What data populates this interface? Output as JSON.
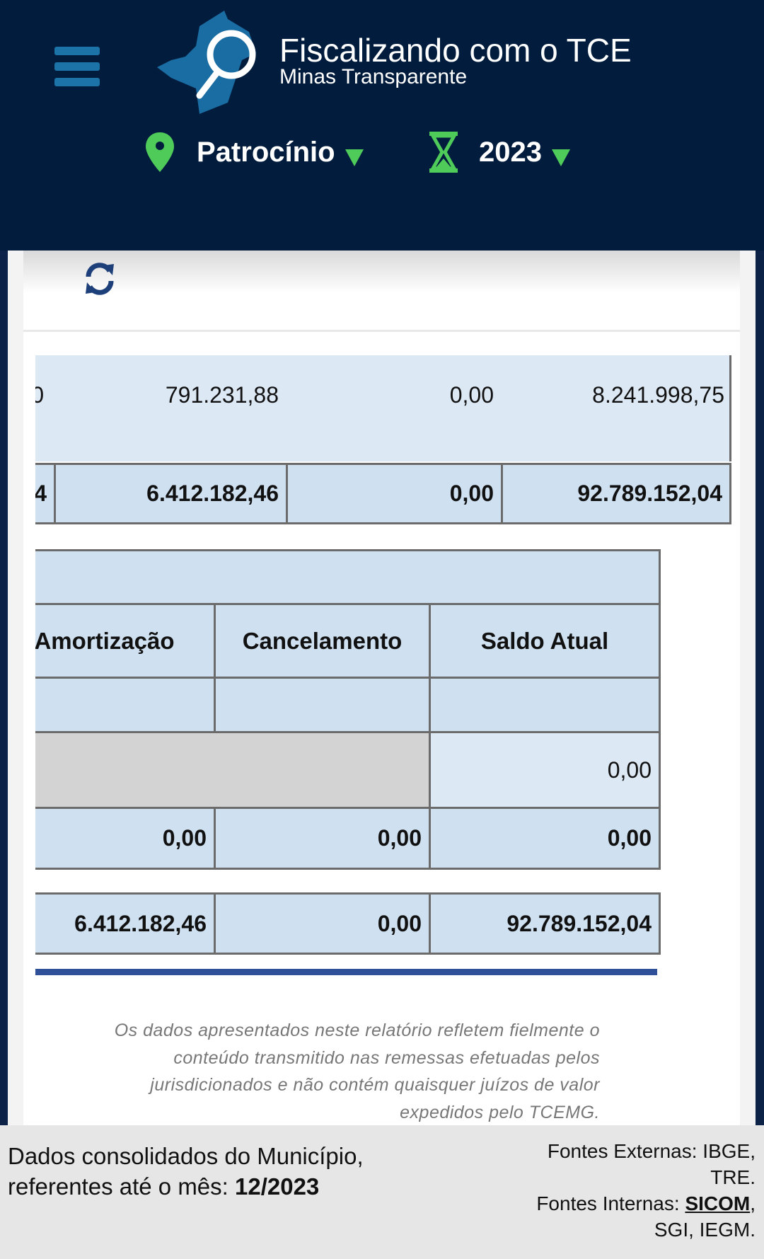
{
  "header": {
    "title": "Fiscalizando com o TCE",
    "subtitle": "Minas Transparente",
    "municipality": "Patrocínio",
    "year": "2023"
  },
  "colors": {
    "header_bg": "#021c3d",
    "accent_green": "#4fcb5a",
    "cell_bg": "#cfe0f1",
    "row_light_bg": "#dde8f5",
    "bar": "#2f4f98"
  },
  "table1": {
    "row1": [
      "0",
      "791.231,88",
      "0,00",
      "8.241.998,75"
    ],
    "total": [
      "4",
      "6.412.182,46",
      "0,00",
      "92.789.152,04"
    ]
  },
  "table2": {
    "headers": [
      "Amortização",
      "Cancelamento",
      "Saldo Atual"
    ],
    "row_saldo": "0,00",
    "subtotal": [
      "0,00",
      "0,00",
      "0,00"
    ],
    "total": [
      "6.412.182,46",
      "0,00",
      "92.789.152,04"
    ]
  },
  "disclaimer": [
    "Os dados apresentados neste relatório refletem fielmente o",
    "conteúdo transmitido nas remessas efetuadas pelos",
    "jurisdicionados e não contém quaisquer juízos de valor",
    "expedidos pelo TCEMG."
  ],
  "footer": {
    "left_line1": "Dados consolidados do Município,",
    "left_line2": "referentes até o mês: ",
    "month": "12/2023",
    "ext_label": "Fontes Externas: IBGE,",
    "ext_rest": "TRE.",
    "int_label": "Fontes Internas: ",
    "sicom": "SICOM",
    "int_rest": "SGI, IEGM."
  }
}
